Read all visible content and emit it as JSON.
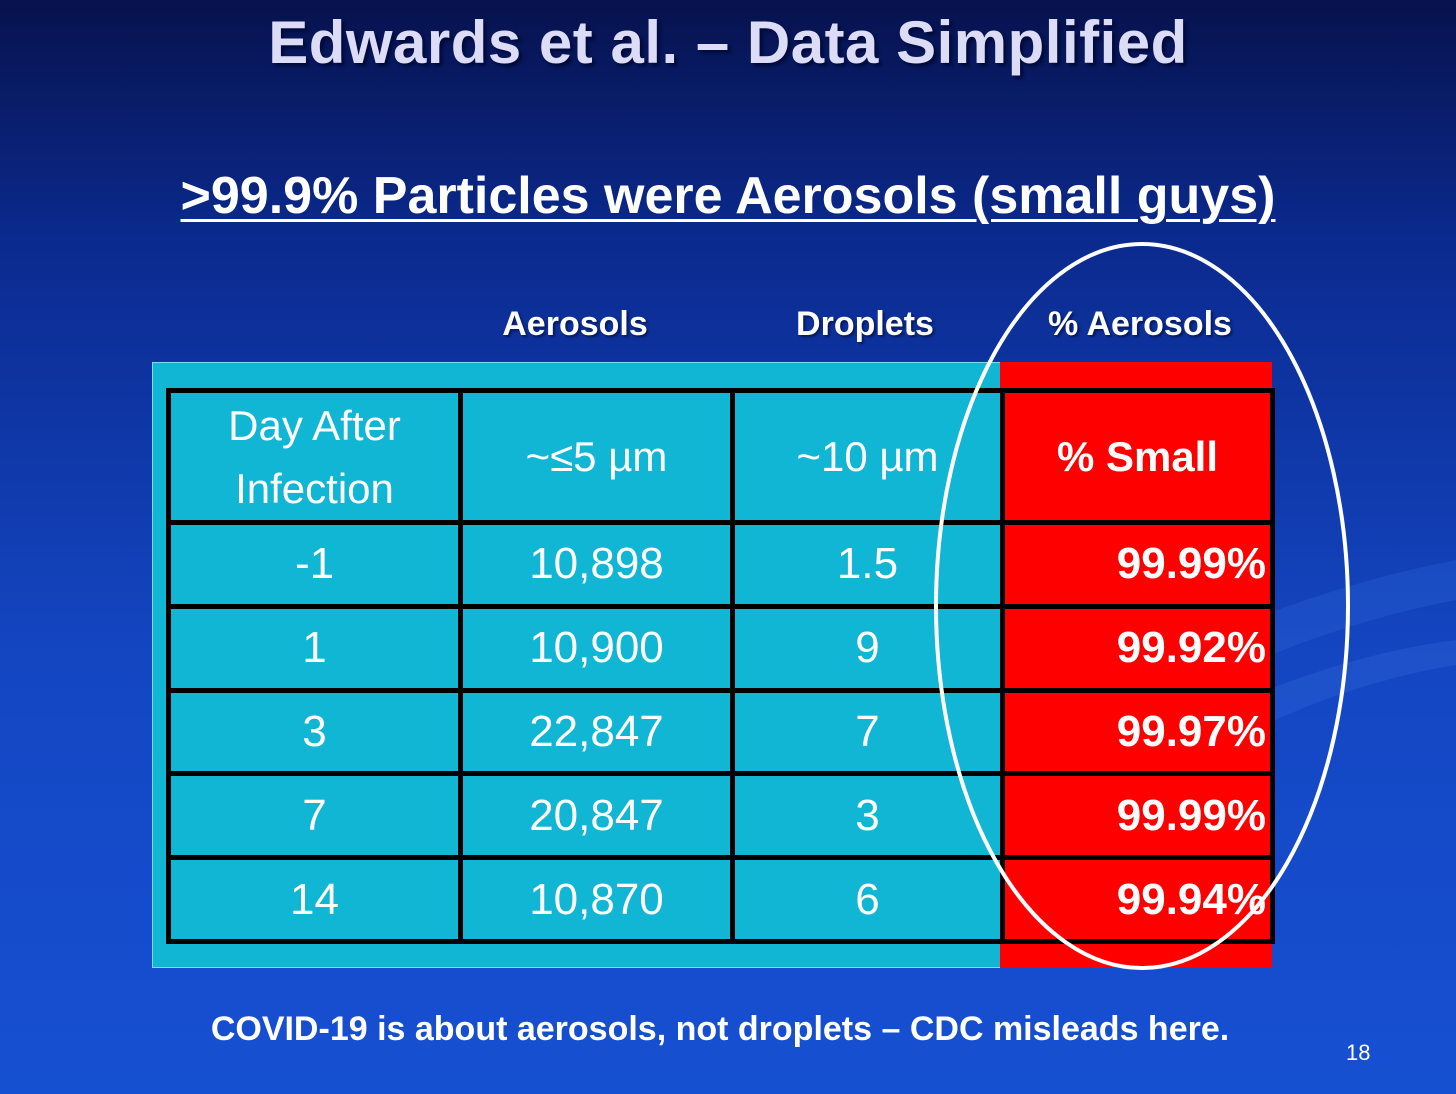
{
  "slide": {
    "title": "Edwards et al. – Data Simplified",
    "subtitle": ">99.9% Particles were Aerosols (small guys)",
    "footer": "COVID-19 is about aerosols, not droplets – CDC misleads here.",
    "page_number": "18"
  },
  "column_labels": {
    "aerosols": "Aerosols",
    "droplets": "Droplets",
    "pct_aerosols": "% Aerosols"
  },
  "table": {
    "headers": {
      "day_line1": "Day After",
      "day_line2": "Infection",
      "aerosol_size": "~≤5 µm",
      "droplet_size": "~10 µm",
      "pct_small": "% Small"
    },
    "rows": [
      {
        "day": "-1",
        "aerosols": "10,898",
        "droplets": "1.5",
        "pct": "99.99%"
      },
      {
        "day": "1",
        "aerosols": "10,900",
        "droplets": "9",
        "pct": "99.92%"
      },
      {
        "day": "3",
        "aerosols": "22,847",
        "droplets": "7",
        "pct": "99.97%"
      },
      {
        "day": "7",
        "aerosols": "20,847",
        "droplets": "3",
        "pct": "99.99%"
      },
      {
        "day": "14",
        "aerosols": "10,870",
        "droplets": "6",
        "pct": "99.94%"
      }
    ]
  },
  "colors": {
    "background": "#1446c2",
    "table_cyan": "#10b6d3",
    "highlight_red": "#ff0000",
    "ellipse": "#ffffff"
  }
}
